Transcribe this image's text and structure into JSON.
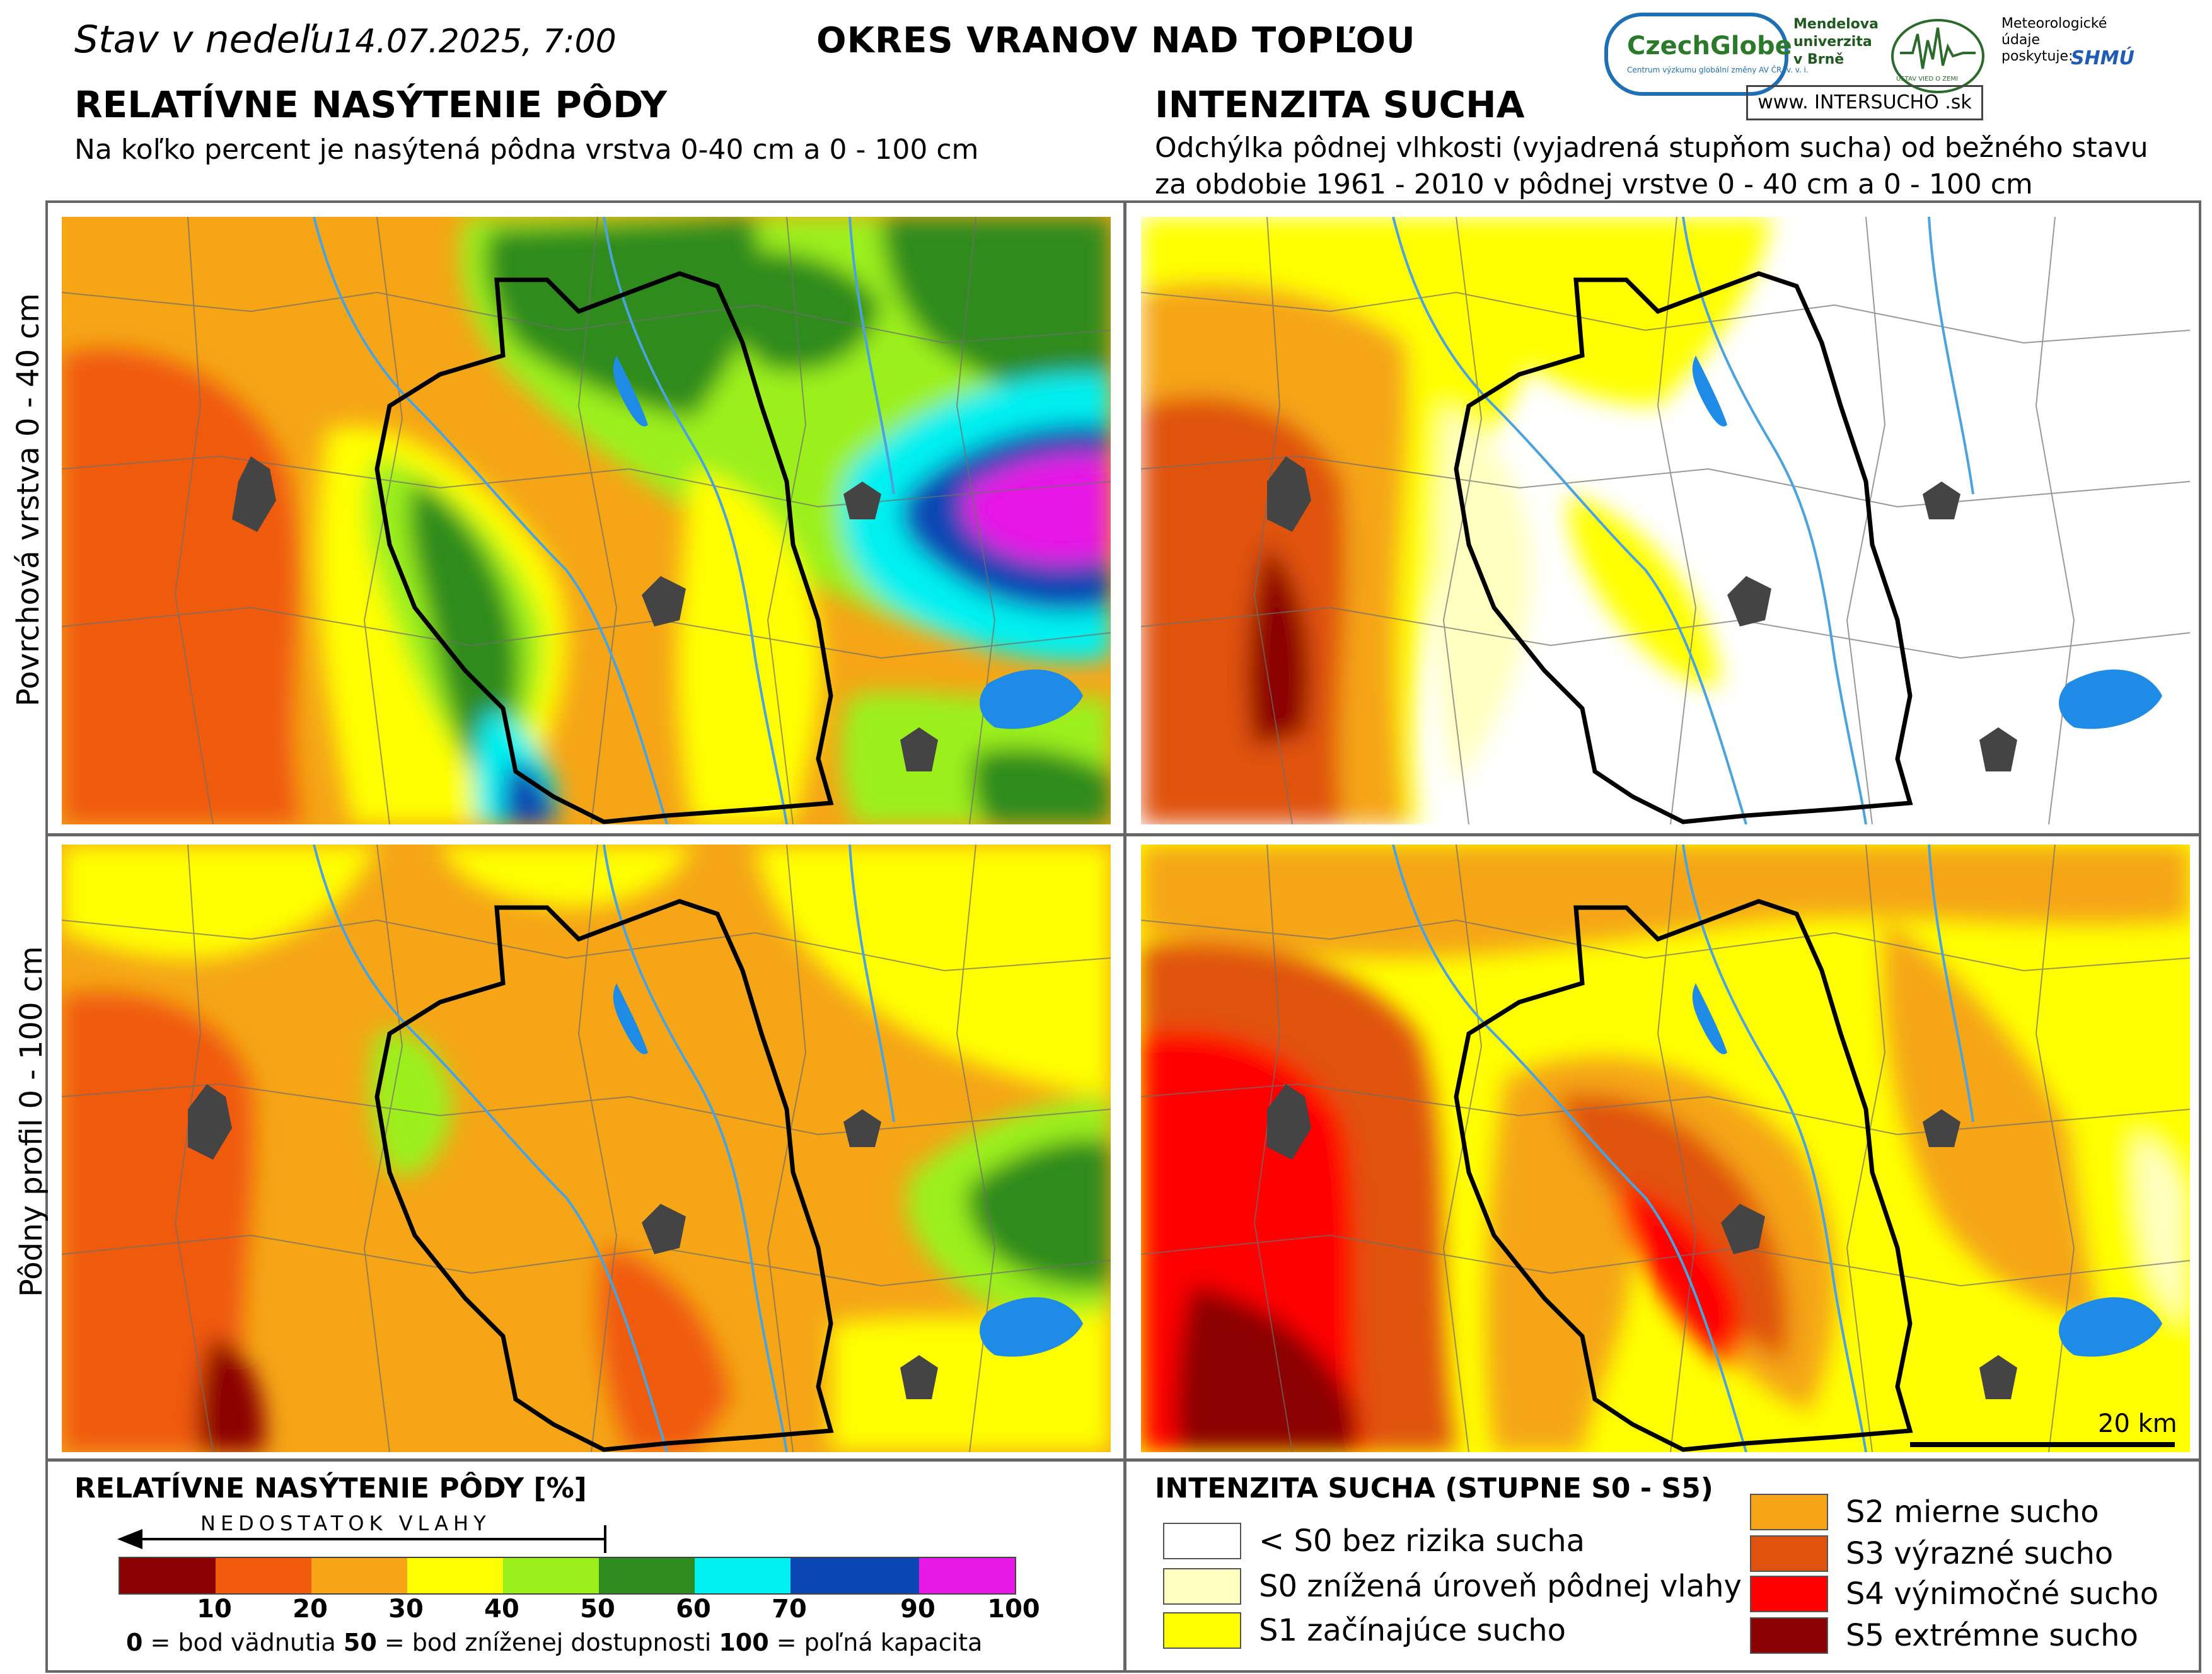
{
  "header": {
    "date_prefix": "Stav v nedeľu",
    "date": "14.07.2025, 7:00",
    "district": "OKRES  VRANOV NAD TOPĽOU"
  },
  "left": {
    "title": "RELATÍVNE NASÝTENIE PÔDY",
    "subtitle": "Na koľko percent je nasýtená pôdna vrstva 0-40 cm a 0 - 100 cm"
  },
  "right": {
    "title": "INTENZITA SUCHA",
    "subtitle_1": "Odchýlka pôdnej vlhkosti (vyjadrená stupňom sucha) od bežného stavu",
    "subtitle_2": "za obdobie 1961 - 2010 v pôdnej vrstve 0 - 40 cm a 0 - 100 cm"
  },
  "rows": {
    "top": "Povrchová vrstva 0 - 40 cm",
    "bottom": "Pôdny profil 0 - 100 cm"
  },
  "logos": {
    "czechglobe": "CzechGlobe",
    "czechglobe_tag": "Centrum výzkumu globální změny AV ČR, v. v. i.",
    "mendelu_1": "Mendelova",
    "mendelu_2": "univerzita",
    "mendelu_3": "v Brně",
    "uvgz": "ÚSTAV VIED O ZEMI",
    "provider_1": "Meteorologické",
    "provider_2": "údaje",
    "provider_3": "poskytuje:",
    "shmu": "SHMÚ",
    "www": "www. INTERSUCHO .sk"
  },
  "scale_bar": "20 km",
  "legend_saturation": {
    "title": "RELATÍVNE NASÝTENIE PÔDY [%]",
    "arrow_label": "NEDOSTATOK VLAHY",
    "ticks": [
      "10",
      "20",
      "30",
      "40",
      "50",
      "60",
      "70",
      "90",
      "100"
    ],
    "colors": [
      "#8b0000",
      "#f05a0a",
      "#f5a516",
      "#ffff00",
      "#9bf01c",
      "#2e8b1e",
      "#00f0f0",
      "#0a46b4",
      "#e619e6"
    ],
    "note_0": "0",
    "note_0_text": " = bod vädnutia  ",
    "note_50": "50",
    "note_50_text": " = bod zníženej dostupnosti  ",
    "note_100": "100",
    "note_100_text": " = poľná kapacita"
  },
  "legend_drought": {
    "title": "INTENZITA SUCHA (STUPNE S0 - S5)",
    "items": [
      {
        "label": "< S0 bez rizika sucha",
        "color": "#ffffff"
      },
      {
        "label": "S0 znížená úroveň pôdnej vlahy",
        "color": "#ffffc0"
      },
      {
        "label": "S1 začínajúce sucho",
        "color": "#ffff00"
      },
      {
        "label": "S2 mierne sucho",
        "color": "#f5a516"
      },
      {
        "label": "S3 výrazné sucho",
        "color": "#e0520e"
      },
      {
        "label": "S4 výnimočné sucho",
        "color": "#ff0000"
      },
      {
        "label": "S5 extrémne sucho",
        "color": "#8b0000"
      }
    ]
  }
}
